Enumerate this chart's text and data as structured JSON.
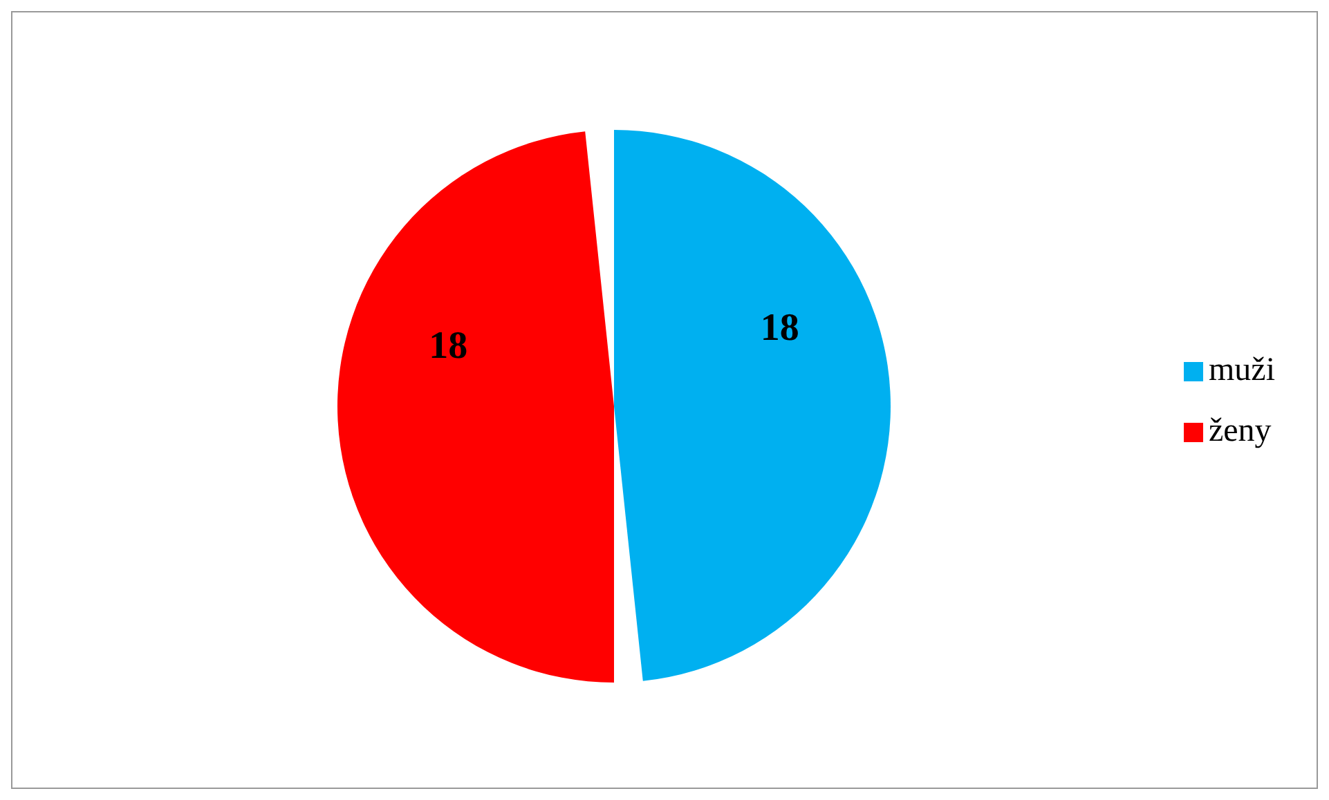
{
  "chart_data": {
    "type": "pie",
    "categories": [
      "muži",
      "ženy"
    ],
    "values": [
      18,
      18
    ],
    "colors": [
      "#00b0f0",
      "#ff0000"
    ],
    "data_labels": true,
    "legend": "right"
  }
}
